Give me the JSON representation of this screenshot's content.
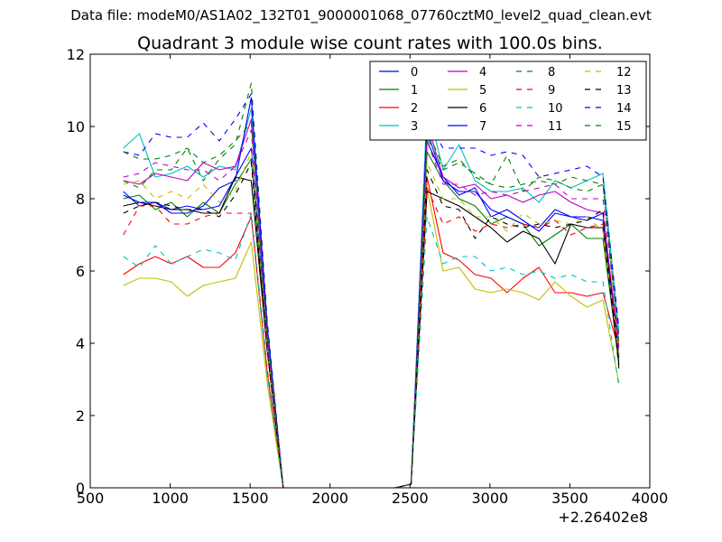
{
  "header": {
    "data_file": "Data file: modeM0/AS1A02_132T01_9000001068_07760cztM0_level2_quad_clean.evt"
  },
  "chart_data": {
    "type": "line",
    "title": "Quadrant 3 module wise count rates with 100.0s bins.",
    "xlabel": "",
    "ylabel": "",
    "x_offset_label": "+2.26402e8",
    "xlim": [
      500,
      4000
    ],
    "ylim": [
      0,
      12
    ],
    "xticks": [
      500,
      1000,
      1500,
      2000,
      2500,
      3000,
      3500,
      4000
    ],
    "yticks": [
      0,
      2,
      4,
      6,
      8,
      10,
      12
    ],
    "legend_position": "top-right",
    "legend_columns": 4,
    "x": [
      707,
      807,
      907,
      1007,
      1107,
      1207,
      1307,
      1407,
      1507,
      1607,
      1707,
      1807,
      1907,
      2007,
      2107,
      2207,
      2307,
      2407,
      2507,
      2607,
      2707,
      2807,
      2907,
      3007,
      3107,
      3207,
      3307,
      3407,
      3507,
      3607,
      3707,
      3807
    ],
    "series": [
      {
        "name": "0",
        "color": "#0000ff",
        "dash": "solid",
        "values": [
          8.2,
          7.8,
          7.9,
          7.7,
          7.8,
          7.7,
          7.8,
          8.6,
          9.4,
          4.0,
          0,
          0,
          0,
          0,
          0,
          0,
          0,
          0,
          0.1,
          9.6,
          8.6,
          8.1,
          8.3,
          7.5,
          7.7,
          7.4,
          7.1,
          7.6,
          7.5,
          7.4,
          7.6,
          3.6
        ]
      },
      {
        "name": "1",
        "color": "#008000",
        "dash": "solid",
        "values": [
          8.0,
          8.1,
          7.7,
          7.9,
          7.5,
          7.9,
          7.6,
          8.4,
          9.1,
          3.9,
          0,
          0,
          0,
          0,
          0,
          0,
          0,
          0,
          0.1,
          9.3,
          8.5,
          8.0,
          7.8,
          7.3,
          7.5,
          7.3,
          6.7,
          7.0,
          7.3,
          6.9,
          6.9,
          3.5
        ]
      },
      {
        "name": "2",
        "color": "#ff0000",
        "dash": "solid",
        "values": [
          5.9,
          6.2,
          6.4,
          6.2,
          6.4,
          6.1,
          6.1,
          6.5,
          7.5,
          3.2,
          0,
          0,
          0,
          0,
          0,
          0,
          0,
          0,
          0.1,
          8.6,
          6.5,
          6.3,
          5.9,
          5.8,
          5.4,
          5.8,
          6.1,
          5.4,
          5.4,
          5.3,
          5.4,
          3.8
        ]
      },
      {
        "name": "3",
        "color": "#00bfbf",
        "dash": "solid",
        "values": [
          9.4,
          9.8,
          8.6,
          8.7,
          8.9,
          8.6,
          8.9,
          8.8,
          10.5,
          4.4,
          0,
          0,
          0,
          0,
          0,
          0,
          0,
          0,
          0.1,
          10.6,
          8.8,
          9.5,
          8.5,
          8.2,
          8.2,
          8.3,
          7.9,
          8.5,
          8.3,
          8.5,
          8.7,
          4.3
        ]
      },
      {
        "name": "4",
        "color": "#bf00bf",
        "dash": "solid",
        "values": [
          8.5,
          8.4,
          8.7,
          8.6,
          8.5,
          9.0,
          8.8,
          8.9,
          10.2,
          4.2,
          0,
          0,
          0,
          0,
          0,
          0,
          0,
          0,
          0.1,
          10.1,
          8.6,
          8.3,
          8.4,
          8.0,
          8.1,
          7.9,
          8.1,
          8.2,
          7.9,
          7.7,
          7.6,
          3.9
        ]
      },
      {
        "name": "5",
        "color": "#bfbf00",
        "dash": "solid",
        "values": [
          5.6,
          5.8,
          5.8,
          5.7,
          5.3,
          5.6,
          5.7,
          5.8,
          6.8,
          2.9,
          0,
          0,
          0,
          0,
          0,
          0,
          0,
          0,
          0.1,
          8.3,
          6.0,
          6.1,
          5.5,
          5.4,
          5.5,
          5.4,
          5.2,
          5.7,
          5.3,
          5.0,
          5.2,
          2.9
        ]
      },
      {
        "name": "6",
        "color": "#000000",
        "dash": "solid",
        "values": [
          7.8,
          7.9,
          7.8,
          7.7,
          7.7,
          7.6,
          7.6,
          8.6,
          8.5,
          3.8,
          0,
          0,
          0,
          0,
          0,
          0,
          0,
          0,
          0.1,
          8.2,
          8.0,
          7.8,
          7.5,
          7.2,
          6.8,
          7.1,
          6.9,
          6.2,
          7.3,
          7.2,
          7.2,
          3.4
        ]
      },
      {
        "name": "7",
        "color": "#0000ff",
        "dash": "solid",
        "values": [
          8.1,
          7.9,
          7.9,
          7.6,
          7.6,
          7.8,
          8.3,
          8.5,
          10.8,
          4.5,
          0,
          0,
          0,
          0,
          0,
          0,
          0,
          0,
          0.1,
          9.9,
          8.5,
          8.2,
          8.2,
          7.7,
          7.5,
          7.3,
          7.2,
          7.7,
          7.5,
          7.5,
          7.4,
          3.7
        ]
      },
      {
        "name": "8",
        "color": "#008000",
        "dash": "dashed",
        "values": [
          8.5,
          8.3,
          8.8,
          8.8,
          9.4,
          8.5,
          9.1,
          9.5,
          11.2,
          4.6,
          0,
          0,
          0,
          0,
          0,
          0,
          0,
          0,
          0.1,
          9.9,
          8.9,
          9.1,
          8.6,
          8.4,
          9.2,
          8.2,
          8.6,
          8.5,
          8.3,
          8.2,
          8.4,
          4.1
        ]
      },
      {
        "name": "9",
        "color": "#ff0000",
        "dash": "dashed",
        "values": [
          7.0,
          7.8,
          7.8,
          7.3,
          7.3,
          7.5,
          7.6,
          7.6,
          7.6,
          3.3,
          0,
          0,
          0,
          0,
          0,
          0,
          0,
          0,
          0.1,
          8.3,
          7.3,
          7.5,
          7.1,
          7.3,
          7.2,
          7.3,
          7.2,
          7.4,
          7.0,
          7.2,
          7.3,
          3.8
        ]
      },
      {
        "name": "10",
        "color": "#00bfbf",
        "dash": "dashed",
        "values": [
          6.4,
          6.1,
          6.7,
          6.2,
          6.4,
          6.6,
          6.5,
          6.3,
          7.6,
          3.1,
          0,
          0,
          0,
          0,
          0,
          0,
          0,
          0,
          0.1,
          7.5,
          6.2,
          6.4,
          6.4,
          6.0,
          6.1,
          5.9,
          6.0,
          5.8,
          5.9,
          5.7,
          5.7,
          2.8
        ]
      },
      {
        "name": "11",
        "color": "#bf00bf",
        "dash": "dashed",
        "values": [
          8.6,
          8.7,
          9.0,
          8.9,
          8.8,
          8.8,
          8.5,
          8.9,
          9.9,
          4.1,
          0,
          0,
          0,
          0,
          0,
          0,
          0,
          0,
          0.1,
          9.6,
          8.4,
          8.4,
          8.1,
          8.2,
          8.1,
          8.2,
          8.3,
          8.4,
          8.0,
          8.0,
          8.0,
          4.2
        ]
      },
      {
        "name": "12",
        "color": "#bfbf00",
        "dash": "dashed",
        "values": [
          8.4,
          8.5,
          8.0,
          8.2,
          8.0,
          8.4,
          7.9,
          8.2,
          9.3,
          3.9,
          0,
          0,
          0,
          0,
          0,
          0,
          0,
          0,
          0.1,
          9.0,
          8.0,
          8.0,
          7.5,
          7.5,
          7.1,
          7.6,
          7.3,
          7.4,
          7.3,
          7.5,
          7.1,
          3.7
        ]
      },
      {
        "name": "13",
        "color": "#000000",
        "dash": "dashed",
        "values": [
          7.6,
          7.8,
          7.9,
          7.8,
          7.7,
          7.7,
          7.5,
          8.1,
          9.0,
          3.8,
          0,
          0,
          0,
          0,
          0,
          0,
          0,
          0,
          0.1,
          8.8,
          7.8,
          7.7,
          6.9,
          7.5,
          7.3,
          7.2,
          7.3,
          7.2,
          7.3,
          7.4,
          7.7,
          3.3
        ]
      },
      {
        "name": "14",
        "color": "#0000ff",
        "dash": "dashed",
        "values": [
          9.3,
          9.2,
          9.8,
          9.7,
          9.7,
          10.1,
          9.6,
          10.2,
          10.9,
          4.6,
          0,
          0,
          0,
          0,
          0,
          0,
          0,
          0,
          0.1,
          10.2,
          9.4,
          9.4,
          9.4,
          9.2,
          9.3,
          9.2,
          8.6,
          8.7,
          8.8,
          8.9,
          8.6,
          4.4
        ]
      },
      {
        "name": "15",
        "color": "#008000",
        "dash": "dashed",
        "values": [
          9.3,
          9.1,
          9.1,
          9.2,
          9.4,
          9.0,
          9.2,
          9.6,
          10.1,
          4.3,
          0,
          0,
          0,
          0,
          0,
          0,
          0,
          0,
          0.1,
          9.7,
          8.8,
          9.0,
          8.7,
          8.4,
          8.3,
          8.4,
          8.5,
          8.4,
          8.6,
          8.5,
          8.4,
          4.0
        ]
      }
    ]
  }
}
